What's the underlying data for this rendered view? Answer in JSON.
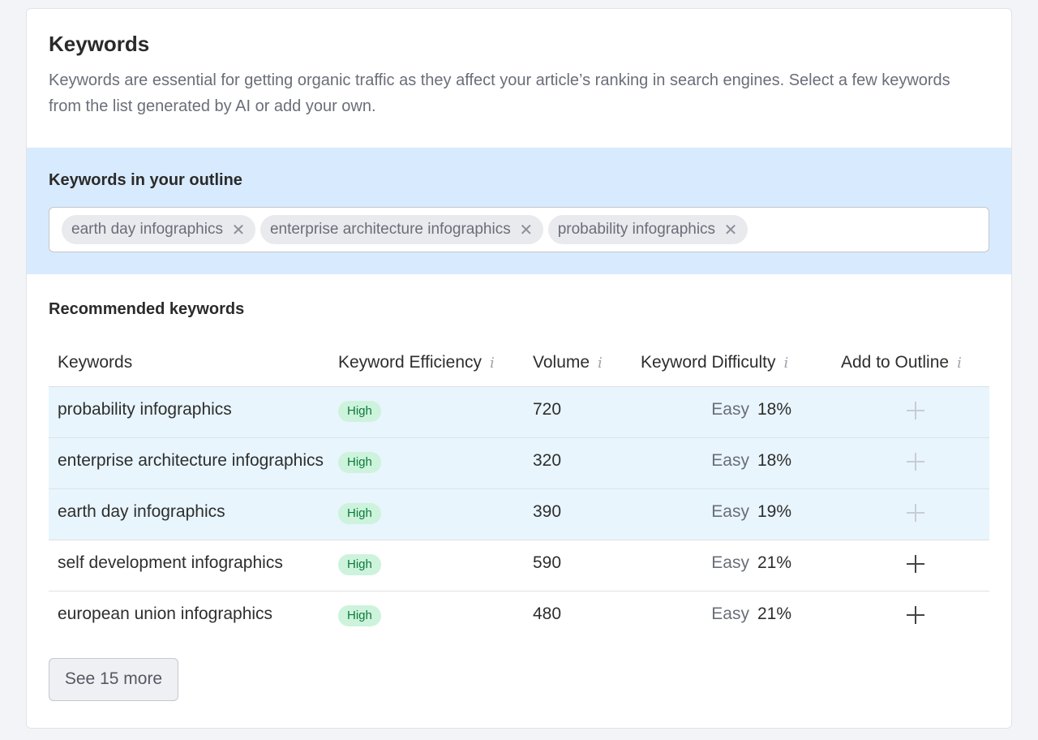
{
  "header": {
    "title": "Keywords",
    "description": "Keywords are essential for getting organic traffic as they affect your article’s ranking in search engines. Select a few keywords from the list generated by AI or add your own."
  },
  "outline": {
    "title": "Keywords in your outline",
    "chips": [
      {
        "label": "earth day infographics"
      },
      {
        "label": "enterprise architecture infographics"
      },
      {
        "label": "probability infographics"
      }
    ],
    "remove_icon": "close-icon"
  },
  "recommended": {
    "title": "Recommended keywords",
    "columns": {
      "keywords": "Keywords",
      "efficiency": "Keyword Efficiency",
      "volume": "Volume",
      "difficulty": "Keyword Difficulty",
      "add": "Add to Outline",
      "info_glyph": "i"
    },
    "rows": [
      {
        "keyword": "probability infographics",
        "efficiency": "High",
        "volume": "720",
        "difficulty_label": "Easy",
        "difficulty": "18%",
        "in_outline": true
      },
      {
        "keyword": "enterprise architecture infographics",
        "efficiency": "High",
        "volume": "320",
        "difficulty_label": "Easy",
        "difficulty": "18%",
        "in_outline": true
      },
      {
        "keyword": "earth day infographics",
        "efficiency": "High",
        "volume": "390",
        "difficulty_label": "Easy",
        "difficulty": "19%",
        "in_outline": true
      },
      {
        "keyword": "self development infographics",
        "efficiency": "High",
        "volume": "590",
        "difficulty_label": "Easy",
        "difficulty": "21%",
        "in_outline": false
      },
      {
        "keyword": "european union infographics",
        "efficiency": "High",
        "volume": "480",
        "difficulty_label": "Easy",
        "difficulty": "21%",
        "in_outline": false
      }
    ],
    "see_more_label": "See 15 more"
  },
  "colors": {
    "selected_row": "#e8f5fd",
    "outline_bg": "#d8eafd",
    "badge_bg": "#cdf3dc",
    "badge_text": "#0d7a3a"
  }
}
